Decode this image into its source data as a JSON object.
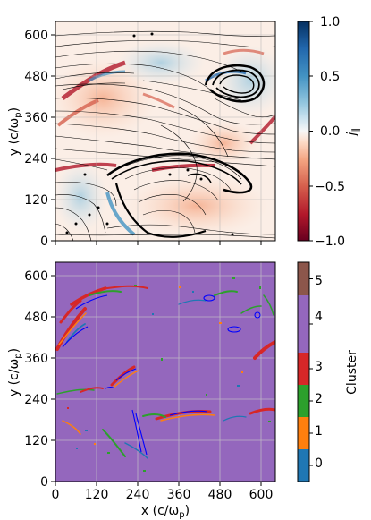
{
  "chart_data": [
    {
      "type": "heatmap",
      "title": "",
      "xlabel": "",
      "ylabel": "y (c/ω",
      "ylabel_sub": "p",
      "ylabel_close": ")",
      "xlim": [
        0,
        640
      ],
      "ylim": [
        0,
        640
      ],
      "xticks": [
        0,
        120,
        240,
        360,
        480,
        600
      ],
      "yticks": [
        "0",
        "120",
        "240",
        "360",
        "480",
        "600"
      ],
      "xtick_labels_shown": false,
      "grid": true,
      "colormap": "RdBu",
      "colorbar": {
        "label": "j",
        "label_sub": "∥",
        "range": [
          -1.0,
          1.0
        ],
        "ticks": [
          "−1.0",
          "−0.5",
          "0.0",
          "0.5",
          "1.0"
        ],
        "tick_values": [
          -1.0,
          -0.5,
          0.0,
          0.5,
          1.0
        ]
      },
      "overlay": "magnetic field streamlines (black)"
    },
    {
      "type": "heatmap",
      "title": "",
      "xlabel": "x (c/ω",
      "xlabel_sub": "p",
      "xlabel_close": ")",
      "ylabel": "y (c/ω",
      "ylabel_sub": "p",
      "ylabel_close": ")",
      "xlim": [
        0,
        640
      ],
      "ylim": [
        0,
        640
      ],
      "xticks": [
        "0",
        "120",
        "240",
        "360",
        "480",
        "600"
      ],
      "yticks": [
        "0",
        "120",
        "240",
        "360",
        "480",
        "600"
      ],
      "grid": true,
      "background_cluster": 4,
      "colorbar": {
        "label": "Cluster",
        "categories": [
          "0",
          "1",
          "2",
          "3",
          "4",
          "5"
        ],
        "colors": [
          "#1f77b4",
          "#ff7f0e",
          "#2ca02c",
          "#d62728",
          "#9467bd",
          "#8c564b"
        ]
      },
      "overlay": "current sheet contours (blue)"
    }
  ]
}
